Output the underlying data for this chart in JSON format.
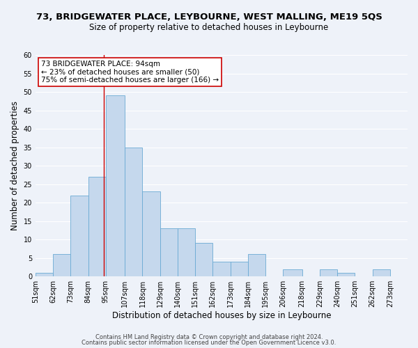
{
  "title": "73, BRIDGEWATER PLACE, LEYBOURNE, WEST MALLING, ME19 5QS",
  "subtitle": "Size of property relative to detached houses in Leybourne",
  "xlabel": "Distribution of detached houses by size in Leybourne",
  "ylabel": "Number of detached properties",
  "bin_labels": [
    "51sqm",
    "62sqm",
    "73sqm",
    "84sqm",
    "95sqm",
    "107sqm",
    "118sqm",
    "129sqm",
    "140sqm",
    "151sqm",
    "162sqm",
    "173sqm",
    "184sqm",
    "195sqm",
    "206sqm",
    "218sqm",
    "229sqm",
    "240sqm",
    "251sqm",
    "262sqm",
    "273sqm"
  ],
  "bin_edges": [
    51,
    62,
    73,
    84,
    95,
    107,
    118,
    129,
    140,
    151,
    162,
    173,
    184,
    195,
    206,
    218,
    229,
    240,
    251,
    262,
    273,
    284
  ],
  "counts": [
    1,
    6,
    22,
    27,
    49,
    35,
    23,
    13,
    13,
    9,
    4,
    4,
    6,
    0,
    2,
    0,
    2,
    1,
    0,
    2,
    0
  ],
  "bar_color": "#c5d8ed",
  "bar_edge_color": "#6aaad4",
  "property_line_x": 94,
  "property_line_color": "#cc0000",
  "annotation_line1": "73 BRIDGEWATER PLACE: 94sqm",
  "annotation_line2": "← 23% of detached houses are smaller (50)",
  "annotation_line3": "75% of semi-detached houses are larger (166) →",
  "annotation_box_edge_color": "#cc0000",
  "ylim": [
    0,
    60
  ],
  "yticks": [
    0,
    5,
    10,
    15,
    20,
    25,
    30,
    35,
    40,
    45,
    50,
    55,
    60
  ],
  "footer_line1": "Contains HM Land Registry data © Crown copyright and database right 2024.",
  "footer_line2": "Contains public sector information licensed under the Open Government Licence v3.0.",
  "bg_color": "#eef2f9",
  "grid_color": "#ffffff",
  "title_fontsize": 9.5,
  "subtitle_fontsize": 8.5,
  "axis_label_fontsize": 8.5,
  "tick_fontsize": 7,
  "annotation_fontsize": 7.5,
  "footer_fontsize": 6
}
